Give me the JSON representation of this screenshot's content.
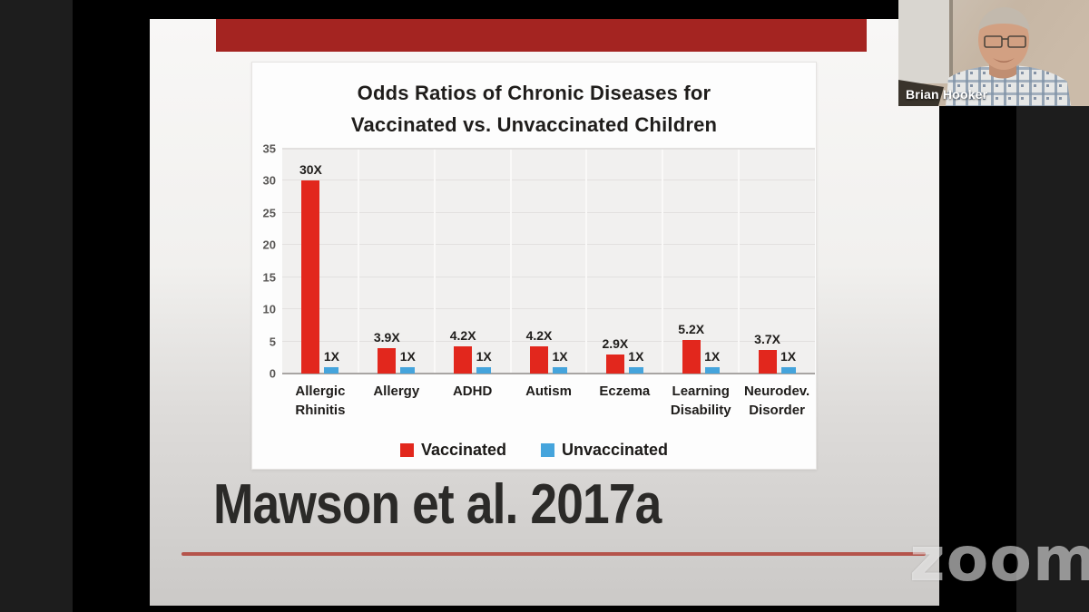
{
  "meeting": {
    "participant_name": "Brian Hooker",
    "watermark": "zoom"
  },
  "slide": {
    "citation": "Mawson et al. 2017a",
    "accent_color": "#a42421"
  },
  "chart_data": {
    "type": "bar",
    "title": "Odds Ratios of Chronic Diseases for Vaccinated vs. Unvaccinated Children",
    "title_lines": [
      "Odds Ratios of Chronic Diseases for",
      "Vaccinated vs. Unvaccinated Children"
    ],
    "categories": [
      "Allergic Rhinitis",
      "Allergy",
      "ADHD",
      "Autism",
      "Eczema",
      "Learning Disability",
      "Neurodev. Disorder"
    ],
    "category_lines": [
      [
        "Allergic",
        "Rhinitis"
      ],
      [
        "Allergy"
      ],
      [
        "ADHD"
      ],
      [
        "Autism"
      ],
      [
        "Eczema"
      ],
      [
        "Learning",
        "Disability"
      ],
      [
        "Neurodev.",
        "Disorder"
      ]
    ],
    "series": [
      {
        "name": "Vaccinated",
        "color": "#e2271d",
        "values": [
          30,
          3.9,
          4.2,
          4.2,
          2.9,
          5.2,
          3.7
        ],
        "labels": [
          "30X",
          "3.9X",
          "4.2X",
          "4.2X",
          "2.9X",
          "5.2X",
          "3.7X"
        ]
      },
      {
        "name": "Unvaccinated",
        "color": "#45a4dc",
        "values": [
          1,
          1,
          1,
          1,
          1,
          1,
          1
        ],
        "labels": [
          "1X",
          "1X",
          "1X",
          "1X",
          "1X",
          "1X",
          "1X"
        ]
      }
    ],
    "y_ticks": [
      0,
      5,
      10,
      15,
      20,
      25,
      30,
      35
    ],
    "ylim": [
      0,
      35
    ],
    "grid": true,
    "legend_position": "bottom"
  }
}
